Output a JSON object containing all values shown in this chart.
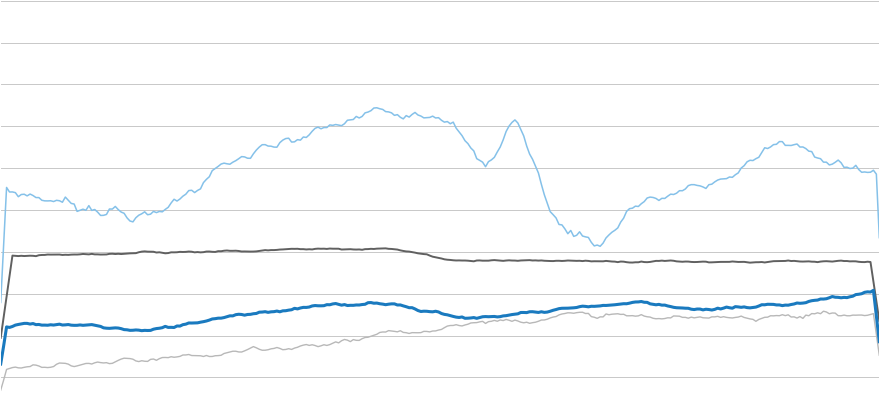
{
  "n_points": 300,
  "background_color": "#ffffff",
  "grid_color": "#c8c8c8",
  "grid_linewidth": 0.7,
  "line1_color": "#85C1E9",
  "line1_linewidth": 1.1,
  "line2_color": "#606060",
  "line2_linewidth": 1.4,
  "line3_color": "#1a7abf",
  "line3_linewidth": 2.2,
  "line4_color": "#b8b8b8",
  "line4_linewidth": 1.0,
  "ylim": [
    0,
    100
  ],
  "xlim": [
    0,
    299
  ],
  "figsize": [
    8.8,
    4.2
  ],
  "dpi": 100
}
